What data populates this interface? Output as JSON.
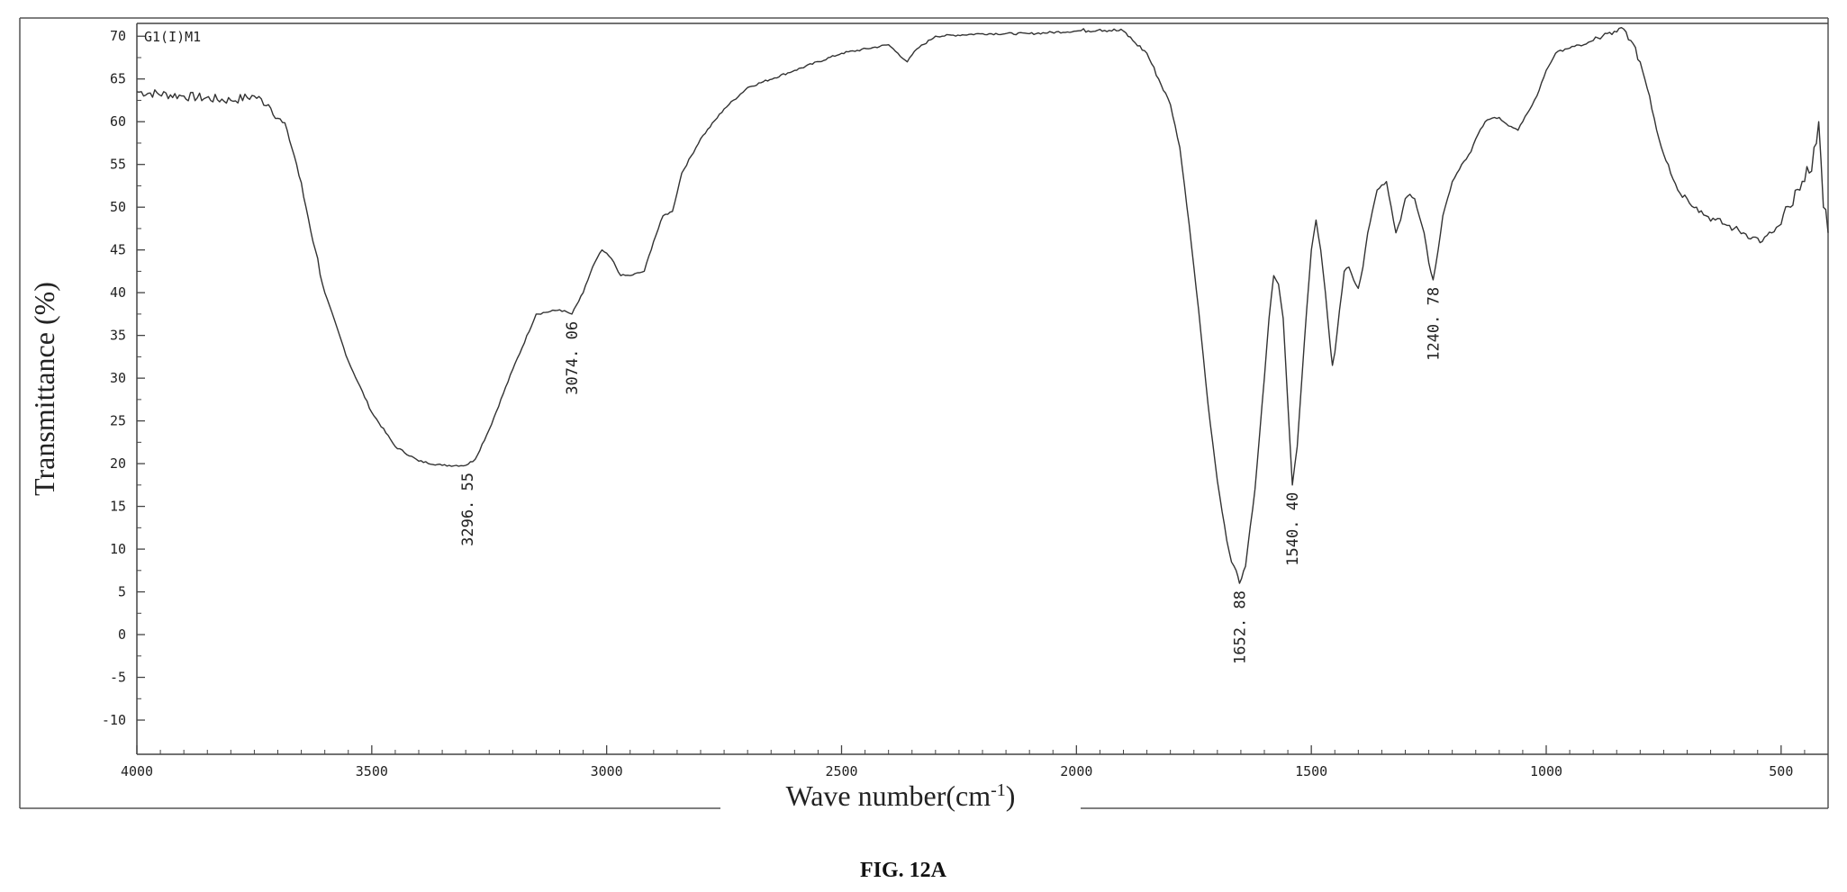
{
  "chart_data": {
    "type": "line",
    "sample_label": "G1(I)M1",
    "xlabel_main": "Wave number(cm",
    "xlabel_sup": "-1",
    "xlabel_end": ")",
    "ylabel": "Transmittance (%)",
    "caption": "FIG. 12A",
    "xlim": [
      4000,
      400
    ],
    "ylim": [
      -14,
      71.5
    ],
    "x_ticks": [
      4000,
      3500,
      3000,
      2500,
      2000,
      1500,
      1000,
      500
    ],
    "y_ticks": [
      70,
      65,
      60,
      55,
      50,
      45,
      40,
      35,
      30,
      25,
      20,
      15,
      10,
      5,
      0,
      -5,
      -10
    ],
    "grid": false,
    "series": [
      {
        "x": [
          4000,
          3900,
          3800,
          3750,
          3720,
          3680,
          3660,
          3640,
          3620,
          3600,
          3550,
          3500,
          3450,
          3400,
          3350,
          3300,
          3280,
          3250,
          3200,
          3150,
          3100,
          3074,
          3050,
          3030,
          3010,
          2990,
          2970,
          2950,
          2920,
          2900,
          2880,
          2860,
          2840,
          2800,
          2750,
          2700,
          2600,
          2500,
          2400,
          2380,
          2360,
          2340,
          2300,
          2200,
          2100,
          2000,
          1950,
          1900,
          1880,
          1850,
          1800,
          1780,
          1760,
          1740,
          1720,
          1700,
          1680,
          1670,
          1660,
          1652.88,
          1640,
          1620,
          1600,
          1590,
          1580,
          1570,
          1560,
          1550,
          1540.4,
          1530,
          1520,
          1510,
          1500,
          1490,
          1480,
          1470,
          1460,
          1455,
          1450,
          1440,
          1430,
          1420,
          1410,
          1400,
          1390,
          1380,
          1360,
          1340,
          1330,
          1320,
          1310,
          1300,
          1290,
          1280,
          1260,
          1250,
          1240.78,
          1230,
          1220,
          1200,
          1180,
          1160,
          1150,
          1130,
          1110,
          1100,
          1080,
          1060,
          1050,
          1040,
          1020,
          1000,
          980,
          960,
          940,
          920,
          900,
          880,
          860,
          850,
          840,
          830,
          820,
          800,
          780,
          760,
          740,
          720,
          700,
          680,
          660,
          640,
          620,
          600,
          580,
          560,
          540,
          520,
          500,
          480,
          460,
          450,
          440,
          430,
          420,
          410,
          400
        ],
        "y": [
          63.5,
          63,
          62.5,
          63,
          62,
          59,
          55,
          50,
          45,
          40,
          32,
          26,
          22,
          20.3,
          19.8,
          19.8,
          20.5,
          24,
          31,
          37.5,
          38,
          37.5,
          40,
          43,
          45,
          44,
          42,
          42,
          42.5,
          46,
          49,
          49.5,
          54,
          58,
          61.5,
          64,
          66,
          68,
          69,
          68,
          67,
          68.5,
          70,
          70.3,
          70.3,
          70.6,
          70.8,
          70.6,
          69.5,
          68,
          62,
          57,
          48,
          38,
          27,
          18,
          11,
          8.5,
          7.5,
          6,
          8,
          17,
          30,
          37,
          42,
          41,
          37,
          27,
          17.5,
          22,
          30,
          38,
          45,
          48.5,
          45,
          40,
          34,
          31.5,
          33,
          38,
          42.5,
          43,
          41.5,
          40.5,
          43,
          47,
          52,
          53,
          50,
          47,
          48.5,
          51,
          51.5,
          51,
          47,
          43.5,
          41.5,
          45,
          49,
          53,
          55,
          56.5,
          58,
          60,
          60.5,
          60.5,
          59.5,
          59,
          60,
          61,
          63,
          66,
          68,
          68.5,
          68.8,
          69,
          69.5,
          70,
          70.2,
          70.5,
          71,
          70.5,
          69.5,
          67,
          63,
          58,
          55,
          52,
          51,
          50,
          49,
          48.5,
          48,
          47.5,
          47,
          46.5,
          46,
          47,
          48,
          50,
          52,
          53,
          54,
          57,
          60,
          50,
          47
        ]
      }
    ],
    "peak_labels": [
      {
        "x": 3296.55,
        "y": 19.8,
        "text": "3296. 55"
      },
      {
        "x": 3074.06,
        "y": 37.5,
        "text": "3074. 06"
      },
      {
        "x": 1652.88,
        "y": 6,
        "text": "1652. 88"
      },
      {
        "x": 1540.4,
        "y": 17.5,
        "text": "1540. 40"
      },
      {
        "x": 1240.78,
        "y": 41.5,
        "text": "1240. 78"
      }
    ]
  }
}
